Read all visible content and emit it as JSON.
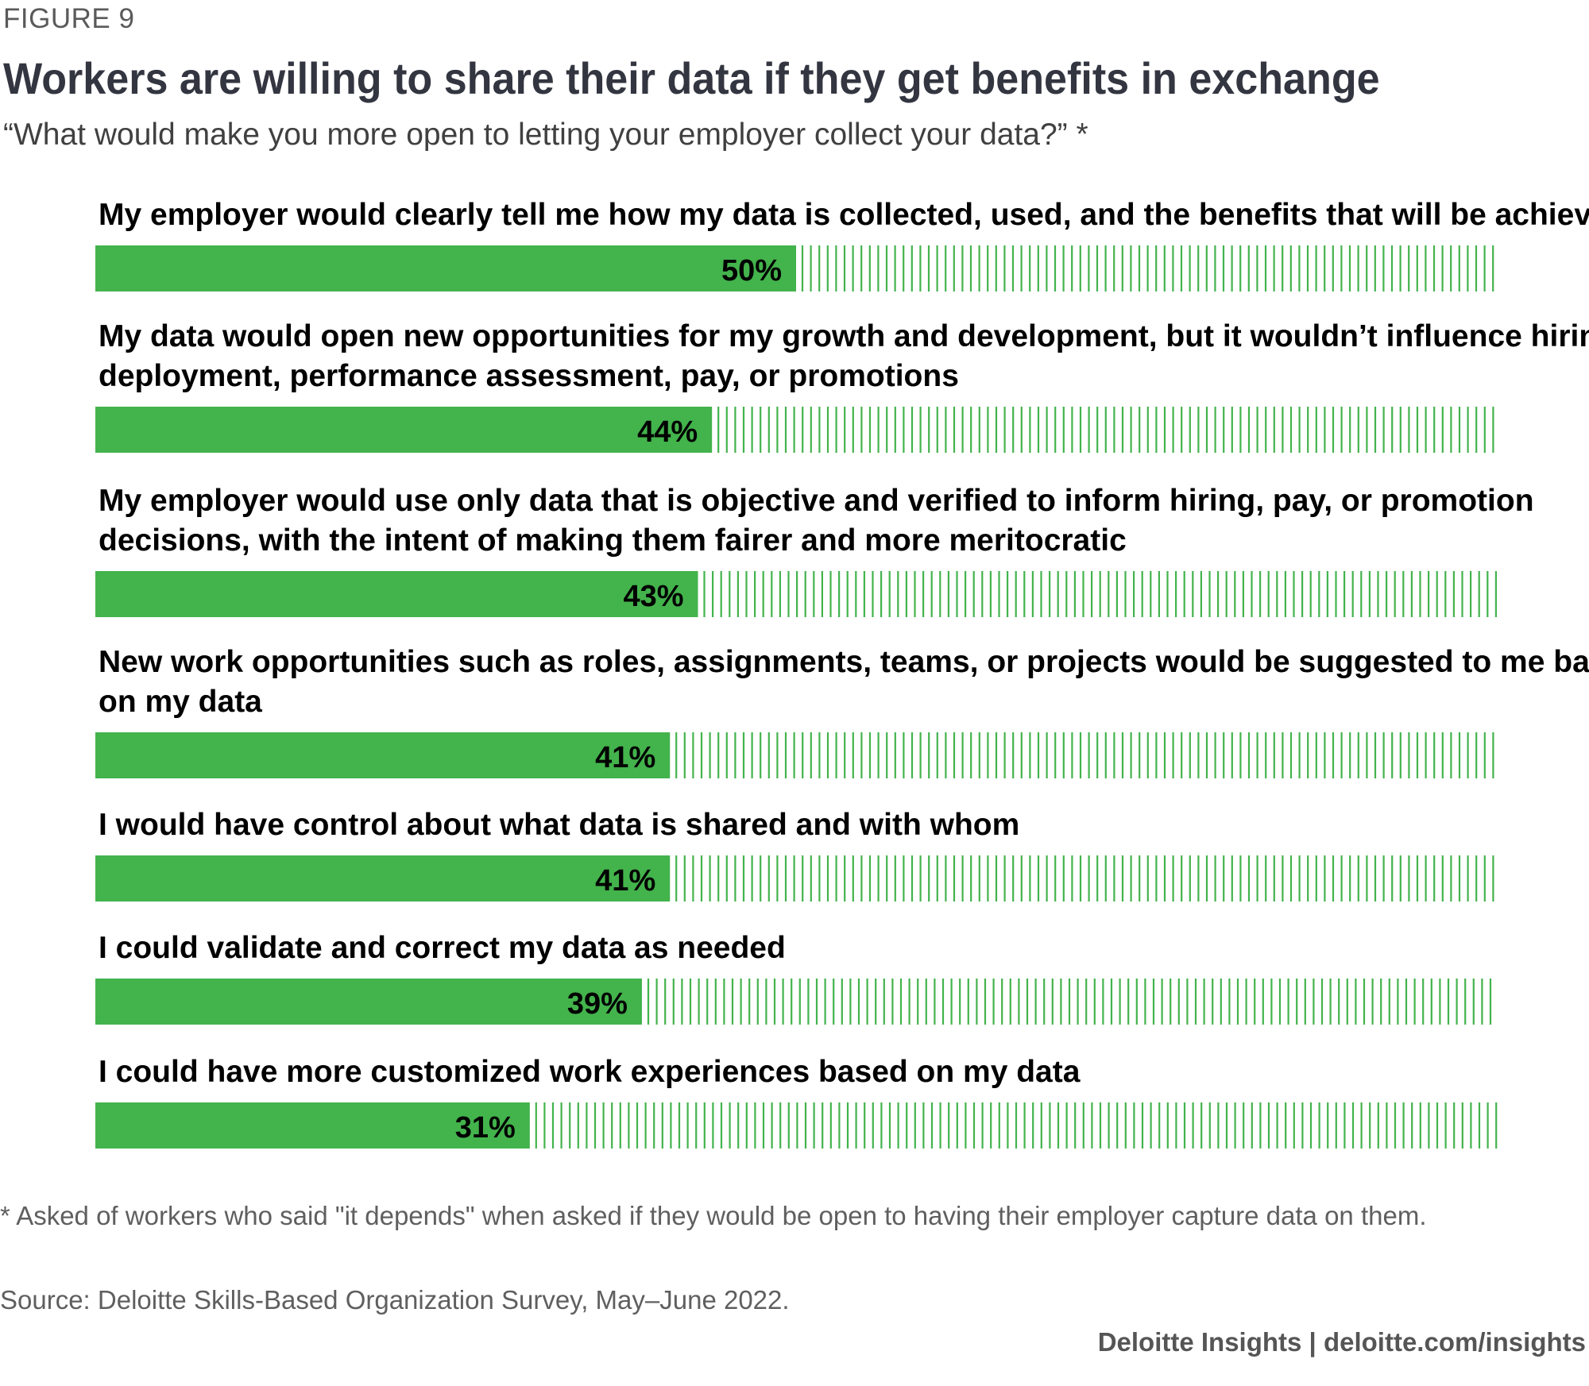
{
  "figure_label": "FIGURE 9",
  "title": "Workers are willing to share their data if they get benefits in exchange",
  "subtitle": "“What would make you more open to letting your employer collect your data?” *",
  "colors": {
    "bar": "#43b34c",
    "hatch": "#43b34c",
    "text": "#000000",
    "title": "#333640",
    "muted": "#5f5f5f"
  },
  "chart_data": {
    "type": "bar",
    "orientation": "horizontal",
    "xlim": [
      0,
      100
    ],
    "grid": false,
    "legend": "none",
    "categories": [
      [
        "My employer would clearly tell me how my data is collected, used, and the benefits that will be achieved"
      ],
      [
        "My data would open new opportunities for my growth and development, but it wouldn’t influence hiring,",
        "deployment, performance assessment, pay, or promotions"
      ],
      [
        "My employer would use only data that is objective and verified to inform hiring, pay, or promotion",
        "decisions, with the intent of making them fairer and more meritocratic"
      ],
      [
        "New work opportunities such as roles, assignments, teams, or projects would be suggested to me based",
        "on my data"
      ],
      [
        "I would have control about what data is shared and with whom"
      ],
      [
        "I could validate and correct my data as needed"
      ],
      [
        "I could have more customized work experiences based on my data"
      ]
    ],
    "values": [
      50,
      44,
      43,
      41,
      41,
      39,
      31
    ],
    "value_labels": [
      "50%",
      "44%",
      "43%",
      "41%",
      "41%",
      "39%",
      "31%"
    ]
  },
  "footnote": "* Asked of workers who said \"it depends\" when asked if they would be open to having their employer capture data on them.",
  "source": "Source: Deloitte Skills-Based Organization Survey, May–June 2022.",
  "branding": "Deloitte Insights | deloitte.com/insights"
}
